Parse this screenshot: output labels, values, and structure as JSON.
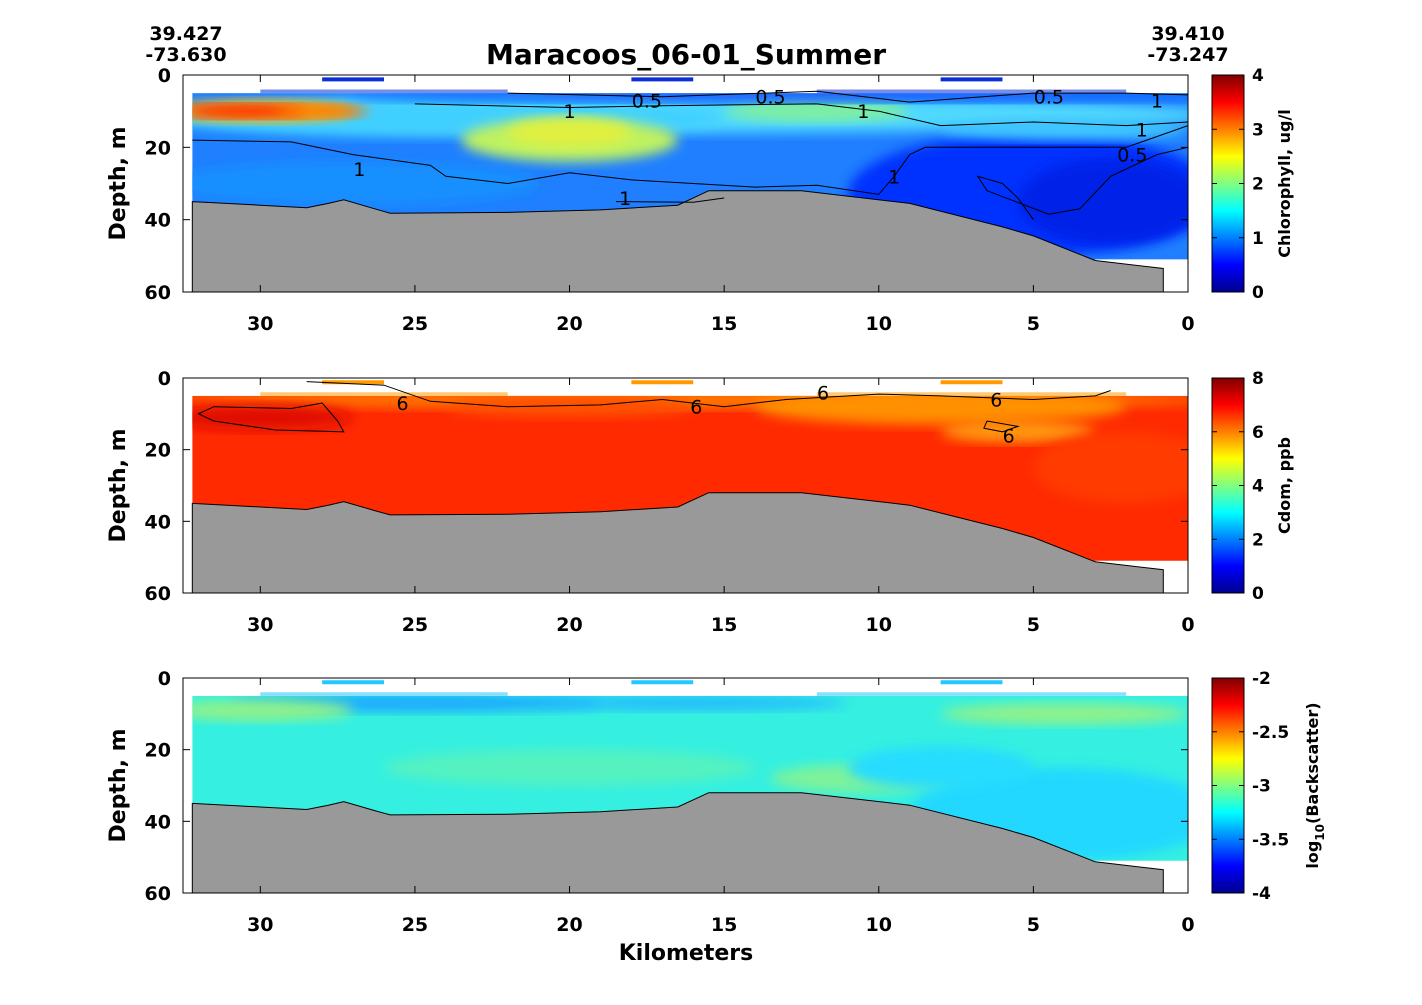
{
  "title": "Maracoos_06-01_Summer",
  "corner_left": {
    "lat": "39.427",
    "lon": "-73.630"
  },
  "corner_right": {
    "lat": "39.410",
    "lon": "-73.247"
  },
  "xlabel": "Kilometers",
  "colors": {
    "bathymetry": "#999999",
    "background": "#ffffff"
  },
  "chart_data": [
    {
      "type": "heatmap",
      "variable": "chlorophyll",
      "ylabel": "Depth, m",
      "colorbar_label": "Chlorophyll, ug/l",
      "colorbar_ticks": [
        "0",
        "1",
        "2",
        "3",
        "4"
      ],
      "clim": [
        0,
        4
      ],
      "xlim": [
        32.5,
        0
      ],
      "ylim": [
        60,
        0
      ],
      "x_ticks": [
        "30",
        "25",
        "20",
        "15",
        "10",
        "5",
        "0"
      ],
      "y_ticks": [
        "0",
        "20",
        "40",
        "60"
      ],
      "contour_labels": [
        {
          "text": "0.5",
          "x": 17.5,
          "y": 7
        },
        {
          "text": "0.5",
          "x": 13.5,
          "y": 6
        },
        {
          "text": "0.5",
          "x": 4.5,
          "y": 6
        },
        {
          "text": "1",
          "x": 20,
          "y": 10
        },
        {
          "text": "1",
          "x": 10.5,
          "y": 10
        },
        {
          "text": "1",
          "x": 1,
          "y": 7
        },
        {
          "text": "1",
          "x": 1.5,
          "y": 15
        },
        {
          "text": "0.5",
          "x": 1.8,
          "y": 22
        },
        {
          "text": "1",
          "x": 26.8,
          "y": 26
        },
        {
          "text": "1",
          "x": 9.5,
          "y": 28
        },
        {
          "text": "1",
          "x": 18.2,
          "y": 34
        }
      ]
    },
    {
      "type": "heatmap",
      "variable": "cdom",
      "ylabel": "Depth, m",
      "colorbar_label": "Cdom, ppb",
      "colorbar_ticks": [
        "0",
        "2",
        "4",
        "6",
        "8"
      ],
      "clim": [
        0,
        8
      ],
      "xlim": [
        32.5,
        0
      ],
      "ylim": [
        60,
        0
      ],
      "x_ticks": [
        "30",
        "25",
        "20",
        "15",
        "10",
        "5",
        "0"
      ],
      "y_ticks": [
        "0",
        "20",
        "40",
        "60"
      ],
      "contour_labels": [
        {
          "text": "6",
          "x": 25.4,
          "y": 7
        },
        {
          "text": "6",
          "x": 15.9,
          "y": 8
        },
        {
          "text": "6",
          "x": 11.8,
          "y": 4
        },
        {
          "text": "6",
          "x": 6.2,
          "y": 6
        },
        {
          "text": "6",
          "x": 5.8,
          "y": 16
        }
      ]
    },
    {
      "type": "heatmap",
      "variable": "backscatter",
      "ylabel": "Depth, m",
      "colorbar_label": "log10(Backscatter)",
      "colorbar_label_main": "log",
      "colorbar_label_sub": "10",
      "colorbar_label_rest": "(Backscatter)",
      "colorbar_ticks": [
        "-4",
        "-3.5",
        "-3",
        "-2.5",
        "-2"
      ],
      "clim": [
        -4,
        -2
      ],
      "xlim": [
        32.5,
        0
      ],
      "ylim": [
        60,
        0
      ],
      "x_ticks": [
        "30",
        "25",
        "20",
        "15",
        "10",
        "5",
        "0"
      ],
      "y_ticks": [
        "0",
        "20",
        "40",
        "60"
      ],
      "contour_labels": []
    }
  ]
}
